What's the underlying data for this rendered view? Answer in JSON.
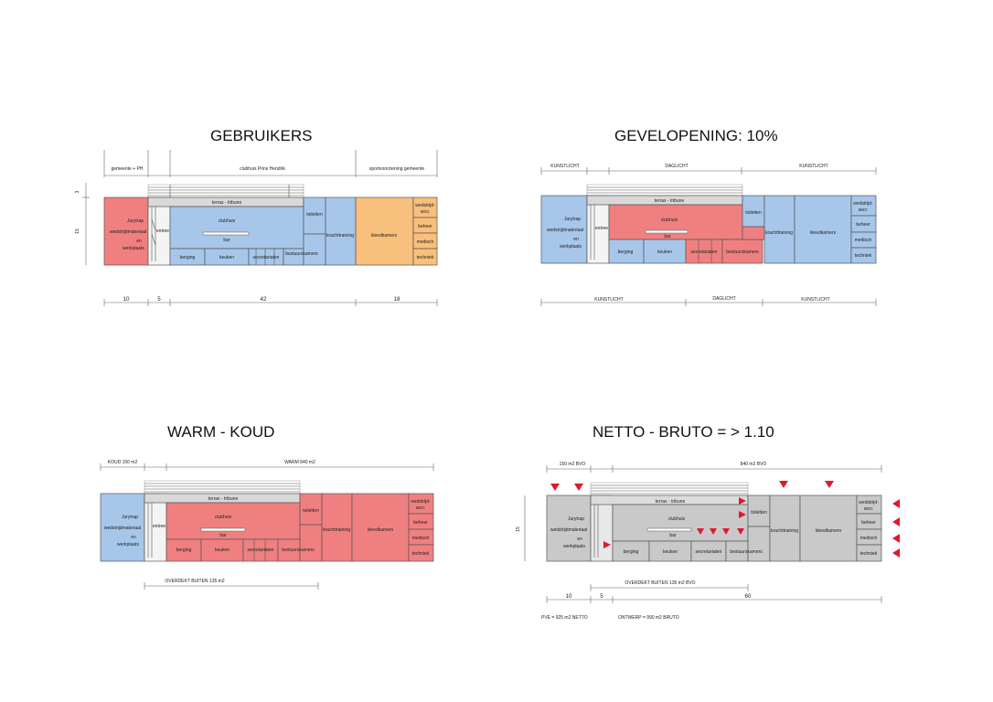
{
  "colors": {
    "red": "#f08080",
    "blue": "#a7c7ea",
    "orange": "#f9bf7c",
    "grey": "#c9c9c9",
    "triangle": "#e0192a"
  },
  "p1": {
    "title": "GEBRUIKERS",
    "groups": [
      "gemeente + PH",
      "clubhuis Prins Hendrik",
      "sportvoorziening gemeente"
    ],
    "dims_left": [
      "3",
      "15"
    ],
    "dims_bottom": [
      "10",
      "5",
      "42",
      "18"
    ]
  },
  "p2": {
    "title": "GEVELOPENING: 10%",
    "top": [
      "KUNSTLICHT",
      "DAGLICHT",
      "KUNSTLICHT"
    ],
    "bottom": [
      "KUNSTLICHT",
      "DAGLICHT",
      "KUNSTLICHT"
    ]
  },
  "p3": {
    "title": "WARM - KOUD",
    "top": [
      "KOUD 150 m2",
      "WARM 840 m2"
    ],
    "bottom": "OVERDEKT BUITEN 135 m2"
  },
  "p4": {
    "title": "NETTO - BRUTO = > 1.10",
    "top": [
      "150 m2 BVO",
      "840 m2 BVO"
    ],
    "overdekt": "OVERDEKT BUITEN 135 m2 BVO",
    "dim_left": "15",
    "dims_bottom": [
      "10",
      "5",
      "60"
    ],
    "pve": "PVE = 925 m2 NETTO",
    "ontwerp": "ONTWERP  = 990 m2 BRUTO"
  },
  "rooms": {
    "jurytrap": "Jurytrap",
    "wedstrijdmateriaal": "wedstrijdmateriaal",
    "en": "en",
    "werkplaats": "werkplaats",
    "entree": "entree",
    "terras": "terras - tribune",
    "clubhuis": "clubhuis",
    "bar": "bar",
    "berging": "berging",
    "keuken": "keuken",
    "secretariaten": "secretariaten",
    "bestuurskamers": "bestuurskamers",
    "toiletten": "toiletten",
    "krachttraining": "krachttraining",
    "kleedkamers": "kleedkamers",
    "wedstrijd1": "wedstrijd-",
    "wedstrijd2": "secr.",
    "beheer": "beheer",
    "medisch": "medisch",
    "techniek": "techniek"
  }
}
